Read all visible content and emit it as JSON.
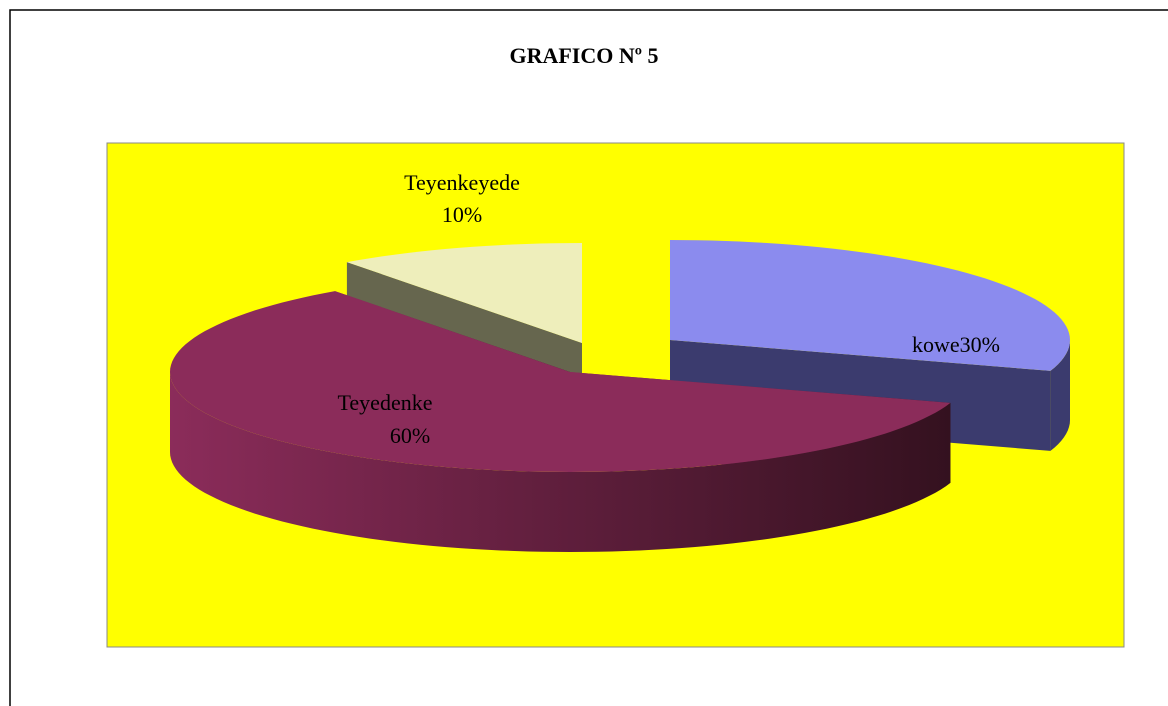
{
  "chart_data": {
    "type": "pie",
    "title": "GRAFICO Nº 5",
    "categories": [
      "kowe",
      "Teyedenke",
      "Teyenkeyede"
    ],
    "values": [
      30,
      60,
      10
    ],
    "value_labels": [
      "30%",
      "60%",
      "10%"
    ],
    "colors": [
      "#8b8bee",
      "#8b2c5a",
      "#eeeebb"
    ],
    "background": "#ffff00"
  }
}
